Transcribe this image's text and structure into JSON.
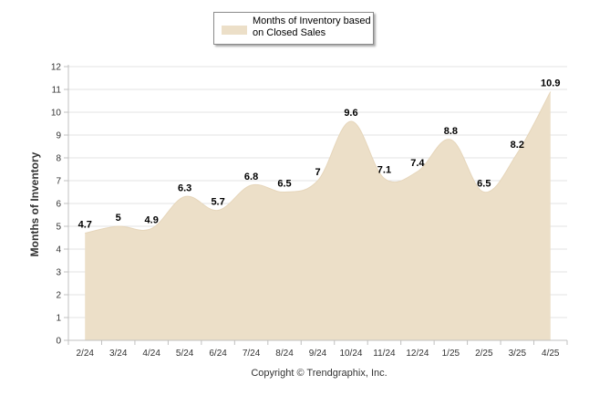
{
  "chart_data": {
    "type": "area",
    "title": "",
    "xlabel": "",
    "ylabel": "Months of Inventory",
    "ylim": [
      0,
      12
    ],
    "yticks": [
      0,
      1,
      2,
      3,
      4,
      5,
      6,
      7,
      8,
      9,
      10,
      11,
      12
    ],
    "categories": [
      "2/24",
      "3/24",
      "4/24",
      "5/24",
      "6/24",
      "7/24",
      "8/24",
      "9/24",
      "10/24",
      "11/24",
      "12/24",
      "1/25",
      "2/25",
      "3/25",
      "4/25"
    ],
    "series": [
      {
        "name": "Months of Inventory based on Closed Sales",
        "values": [
          4.7,
          5,
          4.9,
          6.3,
          5.7,
          6.8,
          6.5,
          7,
          9.6,
          7.1,
          7.4,
          8.8,
          6.5,
          8.2,
          10.9
        ],
        "labels": [
          "4.7",
          "5",
          "4.9",
          "6.3",
          "5.7",
          "6.8",
          "6.5",
          "7",
          "9.6",
          "7.1",
          "7.4",
          "8.8",
          "6.5",
          "8.2",
          "10.9"
        ]
      }
    ],
    "grid": true,
    "legend": "top-center",
    "colors": {
      "fill": "#ecdfc8",
      "grid": "#e3e3e3",
      "axis": "#c0c0c0"
    }
  },
  "footer": {
    "credit": "Copyright © Trendgraphix, Inc."
  }
}
